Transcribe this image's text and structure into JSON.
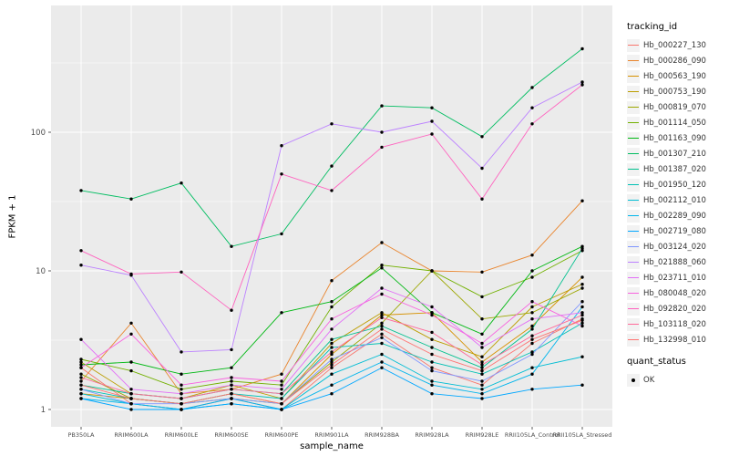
{
  "chart_data": {
    "type": "line",
    "title": "",
    "xlabel": "sample_name",
    "ylabel": "FPKM + 1",
    "y_scale": "log10",
    "y_ticks": [
      1,
      10,
      100
    ],
    "y_tick_labels": [
      "1",
      "10",
      "100"
    ],
    "y_minor_ticks": [
      3.1623,
      31.623,
      316.23
    ],
    "ylim": [
      0.75,
      800
    ],
    "grid": true,
    "legend_position": "right",
    "panel_bg": "#EBEBEB",
    "grid_color": "#FFFFFF",
    "tick_color": "#333333",
    "tick_label_color": "#4D4D4D",
    "point_color": "#000000",
    "x_categories": [
      "PB350LA",
      "RRIM600LA",
      "RRIM600LE",
      "RRIM600SE",
      "RRIM600PE",
      "RRIM901LA",
      "RRIM928BA",
      "RRIM928LA",
      "RRIM928LE",
      "RRII105LA_Control",
      "RRII105LA_Stressed"
    ],
    "series": [
      {
        "name": "Hb_000227_130",
        "color": "#F8766D",
        "values": [
          2.0,
          1.1,
          1.0,
          1.2,
          1.0,
          2.0,
          3.5,
          2.0,
          1.5,
          3.0,
          4.5
        ]
      },
      {
        "name": "Hb_000286_090",
        "color": "#E9842C",
        "values": [
          1.6,
          4.2,
          1.3,
          1.4,
          1.8,
          8.5,
          16,
          10,
          9.8,
          13,
          32
        ]
      },
      {
        "name": "Hb_000563_190",
        "color": "#D69100",
        "values": [
          1.3,
          1.2,
          1.1,
          1.3,
          1.1,
          2.5,
          4.8,
          5.0,
          2.2,
          4.0,
          9.0
        ]
      },
      {
        "name": "Hb_000753_190",
        "color": "#BC9D00",
        "values": [
          2.2,
          1.3,
          1.2,
          1.5,
          1.2,
          3.0,
          5.0,
          3.2,
          2.4,
          5.5,
          8.0
        ]
      },
      {
        "name": "Hb_000819_070",
        "color": "#9CA700",
        "values": [
          1.8,
          1.2,
          1.1,
          1.2,
          1.1,
          2.2,
          4.2,
          10,
          4.5,
          5.0,
          7.5
        ]
      },
      {
        "name": "Hb_001114_050",
        "color": "#72B000",
        "values": [
          2.3,
          1.9,
          1.4,
          1.6,
          1.5,
          5.5,
          11,
          10,
          6.5,
          9.0,
          14
        ]
      },
      {
        "name": "Hb_001163_090",
        "color": "#00B813",
        "values": [
          2.1,
          2.2,
          1.8,
          2.0,
          5.0,
          6.0,
          10.5,
          5.0,
          3.5,
          10,
          15
        ]
      },
      {
        "name": "Hb_001307_210",
        "color": "#00BD61",
        "values": [
          38,
          33,
          43,
          15,
          18.5,
          57,
          155,
          150,
          93,
          210,
          400
        ]
      },
      {
        "name": "Hb_001387_020",
        "color": "#00C08E",
        "values": [
          1.5,
          1.3,
          1.2,
          1.4,
          1.3,
          3.2,
          4.0,
          2.8,
          2.0,
          3.8,
          14.5
        ]
      },
      {
        "name": "Hb_001950_120",
        "color": "#00C0B4",
        "values": [
          1.4,
          1.2,
          1.1,
          1.3,
          1.2,
          2.8,
          3.0,
          2.2,
          1.8,
          2.6,
          4.2
        ]
      },
      {
        "name": "Hb_002112_010",
        "color": "#00BDD4",
        "values": [
          1.3,
          1.1,
          1.0,
          1.1,
          1.0,
          1.8,
          2.5,
          1.6,
          1.4,
          2.0,
          2.4
        ]
      },
      {
        "name": "Hb_002289_090",
        "color": "#00B5EC",
        "values": [
          1.2,
          1.1,
          1.0,
          1.2,
          1.0,
          1.5,
          2.2,
          1.5,
          1.3,
          1.8,
          5.5
        ]
      },
      {
        "name": "Hb_002719_080",
        "color": "#00A7FF",
        "values": [
          1.2,
          1.0,
          1.0,
          1.1,
          1.0,
          1.3,
          2.0,
          1.3,
          1.2,
          1.4,
          1.5
        ]
      },
      {
        "name": "Hb_003124_020",
        "color": "#7F96FF",
        "values": [
          1.4,
          1.1,
          1.1,
          1.2,
          1.1,
          2.3,
          3.3,
          1.9,
          1.6,
          2.5,
          6.0
        ]
      },
      {
        "name": "Hb_021888_060",
        "color": "#BC81FF",
        "values": [
          11,
          9.3,
          2.6,
          2.7,
          80,
          115,
          100,
          120,
          55,
          150,
          230
        ]
      },
      {
        "name": "Hb_023711_010",
        "color": "#E26EF7",
        "values": [
          3.2,
          1.4,
          1.3,
          1.5,
          1.4,
          3.8,
          7.5,
          5.5,
          2.8,
          4.5,
          5.0
        ]
      },
      {
        "name": "Hb_080048_020",
        "color": "#F863DF",
        "values": [
          2.0,
          3.5,
          1.5,
          1.7,
          1.6,
          4.5,
          6.8,
          4.8,
          3.0,
          6.0,
          4.0
        ]
      },
      {
        "name": "Hb_092820_020",
        "color": "#FF62BF",
        "values": [
          14,
          9.5,
          9.8,
          5.2,
          50,
          38,
          78,
          97,
          33,
          115,
          220
        ]
      },
      {
        "name": "Hb_103118_020",
        "color": "#FF6A9A",
        "values": [
          1.7,
          1.3,
          1.2,
          1.4,
          1.3,
          2.6,
          4.6,
          3.6,
          2.1,
          3.4,
          4.8
        ]
      },
      {
        "name": "Hb_132998_010",
        "color": "#FF7372",
        "values": [
          1.5,
          1.2,
          1.1,
          1.3,
          1.1,
          2.1,
          3.8,
          2.5,
          1.9,
          3.2,
          4.4
        ]
      }
    ],
    "legend": {
      "color_title": "tracking_id",
      "shape_title": "quant_status",
      "shape_items": [
        {
          "label": "OK"
        }
      ]
    }
  }
}
